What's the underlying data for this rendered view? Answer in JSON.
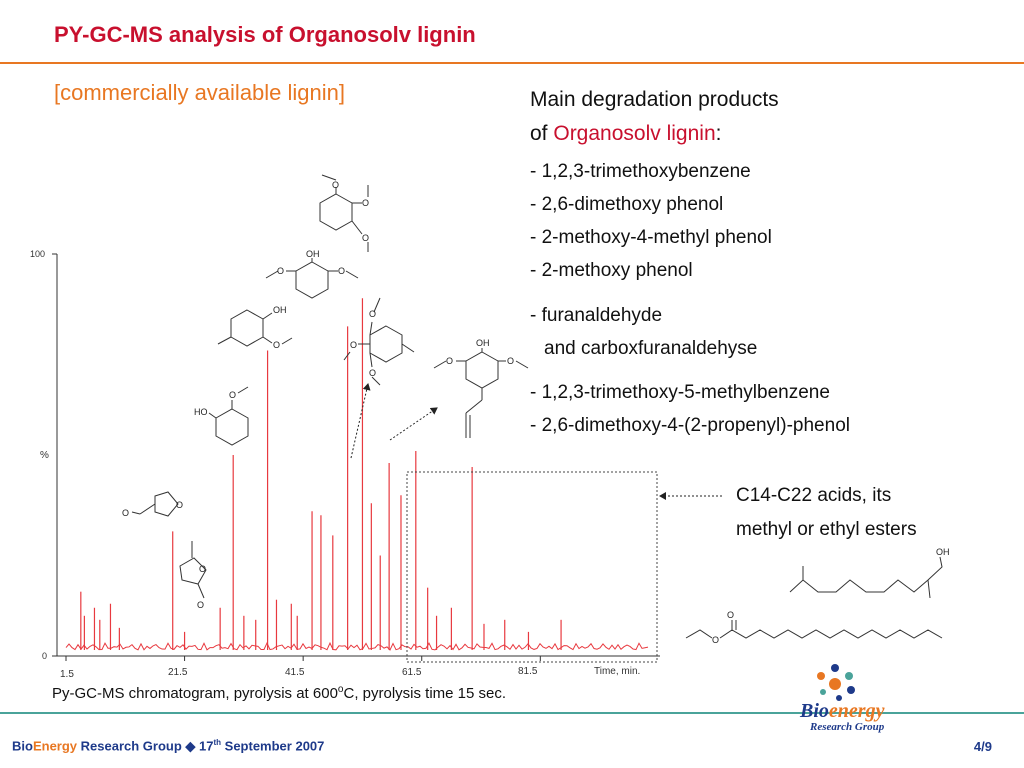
{
  "slide": {
    "title": "PY-GC-MS analysis of Organosolv lignin",
    "subtitle": "[commercially available lignin]",
    "heading_line1": "Main degradation products",
    "heading_of": "of ",
    "heading_red": "Organosolv lignin",
    "heading_colon": ":",
    "products": [
      "- 1,2,3-trimethoxybenzene",
      "- 2,6-dimethoxy phenol",
      "- 2-methoxy-4-methyl phenol",
      "- 2-methoxy phenol",
      "- furanaldehyde",
      "and carboxfuranaldehyse",
      "- 1,2,3-trimethoxy-5-methylbenzene",
      "- 2,6-dimethoxy-4-(2-propenyl)-phenol"
    ],
    "acids_line1": "C14-C22 acids, its",
    "acids_line2": "methyl or ethyl esters",
    "caption_pre": "Py-GC-MS chromatogram, pyrolysis at 600",
    "caption_sup": "o",
    "caption_post": "C, pyrolysis time 15 sec."
  },
  "chromatogram": {
    "y_top": "100",
    "y_mid": "%",
    "y_bottom": "0",
    "x_ticks": [
      "1.5",
      "21.5",
      "41.5",
      "61.5",
      "81.5"
    ],
    "x_unit": "Time, min."
  },
  "chem_labels": {
    "o": "O",
    "oh": "OH",
    "ho": "HO"
  },
  "chart_data": {
    "type": "line",
    "xlabel": "Time, min.",
    "ylabel": "%",
    "xlim": [
      1.5,
      100
    ],
    "ylim": [
      0,
      100
    ],
    "peaks": [
      {
        "x": 4.0,
        "y": 16
      },
      {
        "x": 4.6,
        "y": 10
      },
      {
        "x": 6.3,
        "y": 12
      },
      {
        "x": 7.2,
        "y": 9
      },
      {
        "x": 9.0,
        "y": 13
      },
      {
        "x": 10.5,
        "y": 7
      },
      {
        "x": 19.5,
        "y": 31
      },
      {
        "x": 21.5,
        "y": 6
      },
      {
        "x": 27.5,
        "y": 12
      },
      {
        "x": 29.7,
        "y": 50
      },
      {
        "x": 31.5,
        "y": 10
      },
      {
        "x": 33.5,
        "y": 9
      },
      {
        "x": 35.5,
        "y": 76
      },
      {
        "x": 37.0,
        "y": 14
      },
      {
        "x": 39.5,
        "y": 13
      },
      {
        "x": 40.5,
        "y": 10
      },
      {
        "x": 43.0,
        "y": 36
      },
      {
        "x": 44.5,
        "y": 35
      },
      {
        "x": 46.5,
        "y": 30
      },
      {
        "x": 49.0,
        "y": 82
      },
      {
        "x": 51.5,
        "y": 89
      },
      {
        "x": 53.0,
        "y": 38
      },
      {
        "x": 54.5,
        "y": 25
      },
      {
        "x": 56.0,
        "y": 48
      },
      {
        "x": 58.0,
        "y": 40
      },
      {
        "x": 60.5,
        "y": 51
      },
      {
        "x": 62.5,
        "y": 17
      },
      {
        "x": 64.0,
        "y": 10
      },
      {
        "x": 66.5,
        "y": 12
      },
      {
        "x": 70.0,
        "y": 47
      },
      {
        "x": 72.0,
        "y": 8
      },
      {
        "x": 75.5,
        "y": 9
      },
      {
        "x": 79.5,
        "y": 6
      },
      {
        "x": 85.0,
        "y": 9
      }
    ]
  },
  "colors": {
    "title": "#c8102e",
    "accent": "#e87722",
    "trace": "#e8393f",
    "footer_blue": "#1e3a8a",
    "footer_rule": "#4aa39a"
  },
  "footer": {
    "bio": "Bio",
    "energy": "Energy",
    "rest": " Research Group ",
    "diamond": "◆",
    "date_pre": " 17",
    "date_sup": "th",
    "date_post": " September 2007",
    "page": "4/9"
  },
  "logo": {
    "bio": "Bio",
    "energy": "energy",
    "sub": "Research Group"
  }
}
